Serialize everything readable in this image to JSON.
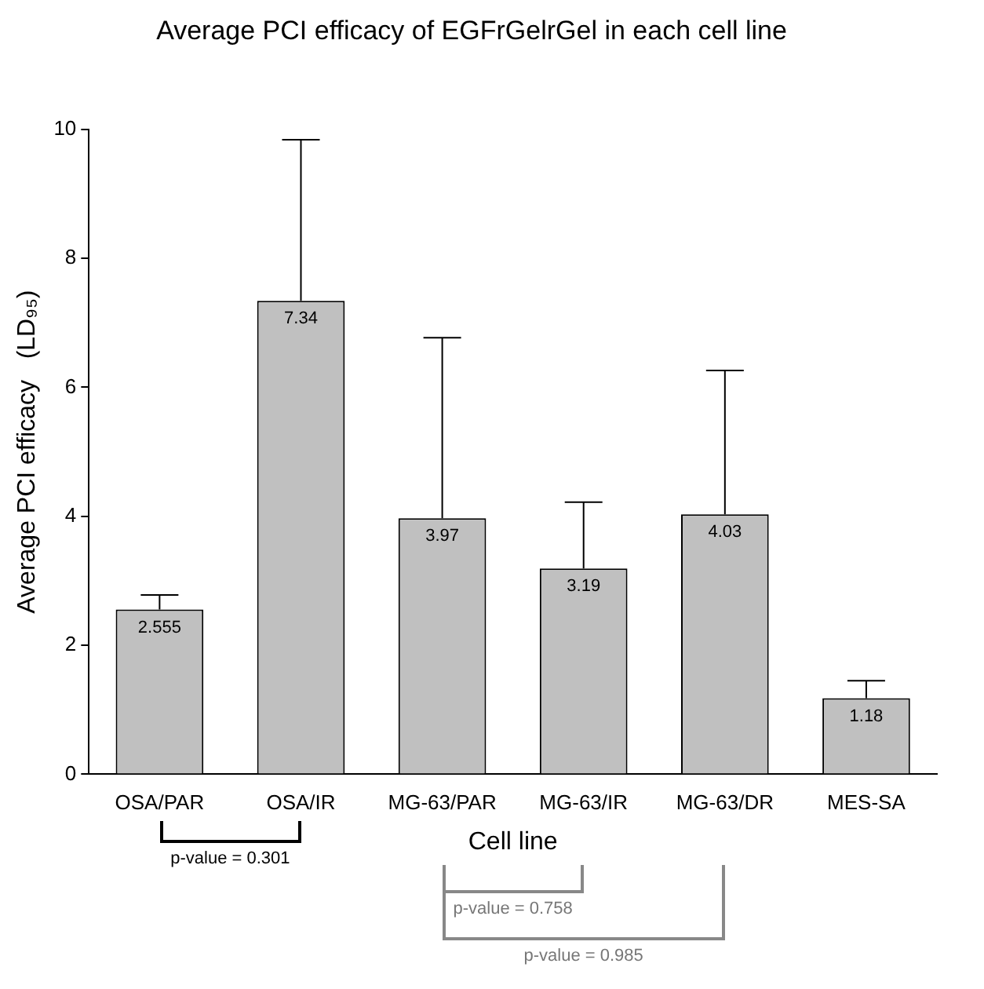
{
  "chart_data": {
    "type": "bar",
    "title": "Average PCI efficacy of EGFrGelrGel in each cell line",
    "xlabel": "Cell line",
    "ylabel": "Average PCI efficacy   (LD₉₅)",
    "categories": [
      "OSA/PAR",
      "OSA/IR",
      "MG-63/PAR",
      "MG-63/IR",
      "MG-63/DR",
      "MES-SA"
    ],
    "values": [
      2.555,
      7.34,
      3.97,
      3.19,
      4.03,
      1.18
    ],
    "errors": [
      [
        2.555,
        2.78
      ],
      [
        7.34,
        9.84
      ],
      [
        3.97,
        6.77
      ],
      [
        3.19,
        4.22
      ],
      [
        4.03,
        6.26
      ],
      [
        1.18,
        1.45
      ]
    ],
    "color": "#c0c0c0",
    "ylim": [
      0,
      10
    ],
    "yticks": [
      0,
      2,
      4,
      6,
      8,
      10
    ],
    "grid": false,
    "legend": false,
    "data_labels": true,
    "annotations": [
      "p-value = 0.301",
      "p-value = 0.758",
      "p-value = 0.985"
    ]
  }
}
